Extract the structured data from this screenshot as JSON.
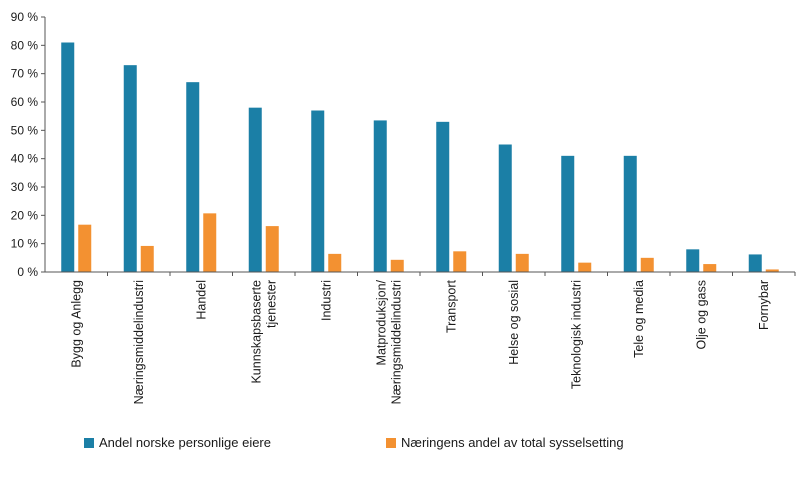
{
  "chart_data": {
    "type": "bar",
    "categories": [
      "Bygg og Anlegg",
      "Næringsmiddelindustri",
      "Handel",
      "Kunnskapsbaserte|tjenester",
      "Industri",
      "Matproduksjon/|Næringsmiddelindustri",
      "Transport",
      "Helse og sosial",
      "Teknologisk industri",
      "Tele og media",
      "Olje og gass",
      "Fornybar"
    ],
    "series": [
      {
        "name": "Andel norske personlige eiere",
        "color": "#1b7fa6",
        "values": [
          81,
          73,
          67,
          58,
          57,
          53.5,
          53,
          45,
          41,
          41,
          8,
          6.2
        ]
      },
      {
        "name": "Næringens andel av total sysselsetting",
        "color": "#f39131",
        "values": [
          16.7,
          9.2,
          20.7,
          16.2,
          6.4,
          4.3,
          7.3,
          6.4,
          3.3,
          5,
          2.8,
          0.9
        ]
      }
    ],
    "y_ticks": [
      "0 %",
      "10 %",
      "20 %",
      "30 %",
      "40 %",
      "50 %",
      "60 %",
      "70 %",
      "80 %",
      "90 %"
    ],
    "ylim": [
      0,
      90
    ],
    "legend_position": "bottom",
    "grid": false
  }
}
